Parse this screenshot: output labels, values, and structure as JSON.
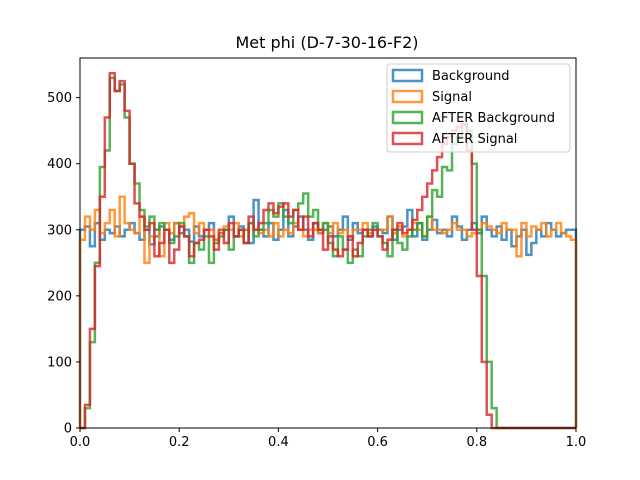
{
  "chart_data": {
    "type": "histogram",
    "title": "Met phi (D-7-30-16-F2)",
    "xlabel": "",
    "ylabel": "",
    "xlim": [
      0,
      1
    ],
    "ylim": [
      0,
      560
    ],
    "xticks": [
      0.0,
      0.2,
      0.4,
      0.6,
      0.8,
      1.0
    ],
    "xtick_labels": [
      "0.0",
      "0.2",
      "0.4",
      "0.6",
      "0.8",
      "1.0"
    ],
    "yticks": [
      0,
      100,
      200,
      300,
      400,
      500
    ],
    "ytick_labels": [
      "0",
      "100",
      "200",
      "300",
      "400",
      "500"
    ],
    "grid": false,
    "legend_position": "top-right",
    "bins": 100,
    "bin_range": [
      0,
      1
    ],
    "series": [
      {
        "name": "Background",
        "color": "#1f77b4",
        "values": [
          300,
          305,
          275,
          310,
          285,
          300,
          295,
          305,
          290,
          300,
          310,
          295,
          285,
          300,
          278,
          290,
          305,
          300,
          285,
          310,
          295,
          300,
          282,
          305,
          290,
          300,
          310,
          285,
          295,
          300,
          320,
          290,
          305,
          300,
          280,
          345,
          300,
          290,
          310,
          285,
          300,
          330,
          290,
          305,
          320,
          300,
          285,
          310,
          295,
          300,
          305,
          290,
          300,
          320,
          285,
          310,
          295,
          300,
          290,
          305,
          300,
          295,
          320,
          285,
          300,
          305,
          330,
          290,
          310,
          285,
          300,
          315,
          295,
          300,
          290,
          320,
          305,
          285,
          300,
          310,
          295,
          320,
          300,
          290,
          305,
          285,
          300,
          275,
          290,
          300,
          262,
          280,
          300,
          290,
          310,
          300,
          290,
          295,
          300,
          300
        ]
      },
      {
        "name": "Signal",
        "color": "#ff7f0e",
        "values": [
          285,
          320,
          300,
          330,
          295,
          310,
          330,
          290,
          350,
          310,
          300,
          295,
          320,
          250,
          290,
          300,
          260,
          310,
          295,
          310,
          305,
          320,
          325,
          295,
          310,
          300,
          300,
          285,
          295,
          305,
          300,
          310,
          290,
          300,
          310,
          300,
          295,
          300,
          290,
          310,
          290,
          300,
          295,
          310,
          300,
          290,
          300,
          300,
          295,
          310,
          295,
          310,
          295,
          300,
          290,
          300,
          300,
          310,
          295,
          300,
          300,
          300,
          320,
          295,
          305,
          290,
          300,
          310,
          300,
          290,
          320,
          300,
          300,
          295,
          300,
          310,
          300,
          300,
          290,
          295,
          300,
          310,
          305,
          300,
          295,
          310,
          300,
          300,
          260,
          310,
          290,
          305,
          300,
          310,
          290,
          300,
          310,
          295,
          290,
          285
        ]
      },
      {
        "name": "AFTER Background",
        "color": "#2ca02c",
        "values": [
          0,
          30,
          130,
          250,
          395,
          420,
          530,
          510,
          520,
          470,
          400,
          370,
          330,
          305,
          320,
          300,
          310,
          300,
          280,
          290,
          310,
          290,
          250,
          280,
          270,
          290,
          250,
          280,
          290,
          300,
          270,
          290,
          300,
          280,
          310,
          290,
          300,
          310,
          330,
          320,
          340,
          320,
          310,
          330,
          340,
          355,
          320,
          330,
          300,
          310,
          280,
          260,
          290,
          270,
          250,
          270,
          260,
          290,
          300,
          310,
          290,
          280,
          260,
          300,
          280,
          270,
          290,
          300,
          310,
          290,
          320,
          360,
          350,
          395,
          390,
          430,
          440,
          460,
          450,
          400,
          300,
          230,
          100,
          30,
          0,
          0,
          0,
          0,
          0,
          0,
          0,
          0,
          0,
          0,
          0,
          0,
          0,
          0,
          0,
          0
        ]
      },
      {
        "name": "AFTER Signal",
        "color": "#d62728",
        "values": [
          0,
          35,
          150,
          245,
          350,
          470,
          537,
          510,
          525,
          480,
          400,
          340,
          320,
          300,
          310,
          260,
          280,
          300,
          250,
          270,
          305,
          290,
          260,
          280,
          285,
          300,
          290,
          270,
          300,
          280,
          310,
          290,
          300,
          280,
          320,
          300,
          310,
          330,
          340,
          325,
          335,
          340,
          320,
          330,
          300,
          320,
          290,
          310,
          300,
          270,
          290,
          270,
          260,
          270,
          290,
          260,
          280,
          300,
          290,
          300,
          290,
          270,
          285,
          300,
          310,
          295,
          300,
          315,
          330,
          350,
          370,
          390,
          410,
          430,
          440,
          450,
          455,
          460,
          420,
          300,
          230,
          100,
          20,
          0,
          0,
          0,
          0,
          0,
          0,
          0,
          0,
          0,
          0,
          0,
          0,
          0,
          0,
          0,
          0,
          0
        ]
      }
    ]
  },
  "legend": {
    "items": [
      {
        "label": "Background",
        "color": "#1f77b4"
      },
      {
        "label": "Signal",
        "color": "#ff7f0e"
      },
      {
        "label": "AFTER Background",
        "color": "#2ca02c"
      },
      {
        "label": "AFTER Signal",
        "color": "#d62728"
      }
    ]
  }
}
